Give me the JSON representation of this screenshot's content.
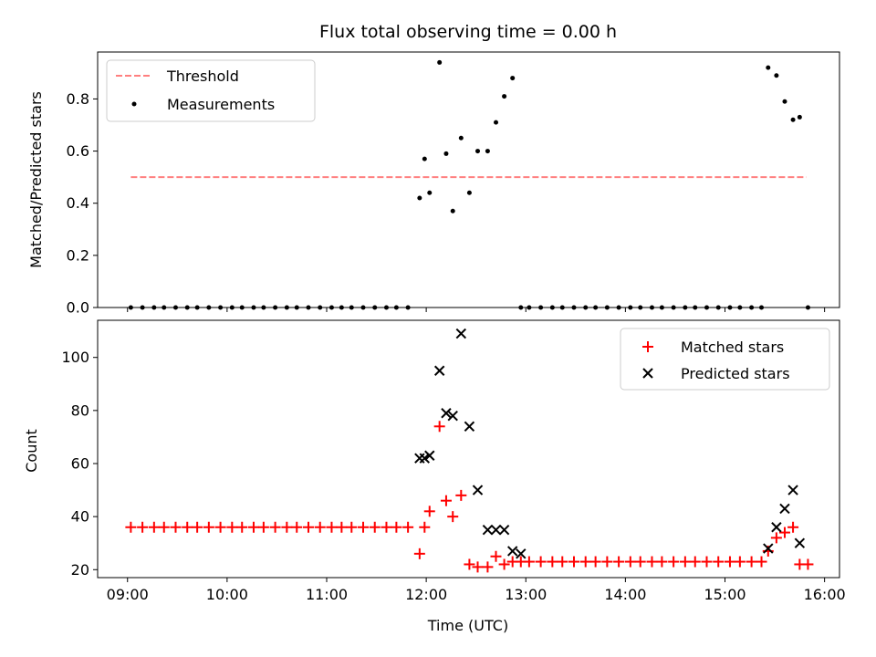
{
  "chart_data": [
    {
      "type": "scatter",
      "title": "Flux total observing time = 0.00 h",
      "ylabel": "Matched/Predicted stars",
      "xlabel": "",
      "ylim": [
        0,
        0.98
      ],
      "yticks": [
        "0.0",
        "0.2",
        "0.4",
        "0.6",
        "0.8"
      ],
      "ytick_values": [
        0,
        0.2,
        0.4,
        0.6,
        0.8
      ],
      "legend_position": "upper-left",
      "colors": {
        "threshold": "#ff7f7f",
        "measurements": "#000000"
      },
      "series": [
        {
          "name": "Threshold",
          "kind": "dashed-line",
          "x": [
            "09:02",
            "15:49"
          ],
          "y": [
            0.5,
            0.5
          ]
        },
        {
          "name": "Measurements",
          "kind": "points",
          "x": [
            "09:02",
            "09:09",
            "09:16",
            "09:22",
            "09:29",
            "09:36",
            "09:42",
            "09:49",
            "09:56",
            "10:03",
            "10:09",
            "10:16",
            "10:22",
            "10:29",
            "10:36",
            "10:42",
            "10:49",
            "10:56",
            "11:03",
            "11:09",
            "11:15",
            "11:22",
            "11:29",
            "11:36",
            "11:42",
            "11:49",
            "11:56",
            "11:59",
            "12:02",
            "12:08",
            "12:12",
            "12:16",
            "12:21",
            "12:26",
            "12:31",
            "12:37",
            "12:42",
            "12:47",
            "12:52",
            "12:57",
            "13:02",
            "13:09",
            "13:16",
            "13:22",
            "13:29",
            "13:36",
            "13:42",
            "13:49",
            "13:56",
            "14:03",
            "14:09",
            "14:16",
            "14:22",
            "14:29",
            "14:36",
            "14:42",
            "14:49",
            "14:56",
            "15:03",
            "15:09",
            "15:16",
            "15:22",
            "15:26",
            "15:31",
            "15:36",
            "15:41",
            "15:45",
            "15:50"
          ],
          "y": [
            0,
            0,
            0,
            0,
            0,
            0,
            0,
            0,
            0,
            0,
            0,
            0,
            0,
            0,
            0,
            0,
            0,
            0,
            0,
            0,
            0,
            0,
            0,
            0,
            0,
            0,
            0.42,
            0.57,
            0.44,
            0.94,
            0.59,
            0.37,
            0.65,
            0.44,
            0.6,
            0.6,
            0.71,
            0.81,
            0.88,
            0,
            0,
            0,
            0,
            0,
            0,
            0,
            0,
            0,
            0,
            0,
            0,
            0,
            0,
            0,
            0,
            0,
            0,
            0,
            0,
            0,
            0,
            0,
            0.92,
            0.89,
            0.79,
            0.72,
            0.73,
            0
          ]
        }
      ]
    },
    {
      "type": "scatter",
      "title": "",
      "xlabel": "Time (UTC)",
      "ylabel": "Count",
      "ylim": [
        17,
        114
      ],
      "yticks": [
        "20",
        "40",
        "60",
        "80",
        "100"
      ],
      "ytick_values": [
        20,
        40,
        60,
        80,
        100
      ],
      "xlim": [
        "08:42",
        "16:09"
      ],
      "xticks": [
        "09:00",
        "10:00",
        "11:00",
        "12:00",
        "13:00",
        "14:00",
        "15:00",
        "16:00"
      ],
      "legend_position": "upper-right",
      "colors": {
        "matched": "#ff0000",
        "predicted": "#000000"
      },
      "series": [
        {
          "name": "Matched stars",
          "marker": "plus",
          "x": [
            "09:02",
            "09:09",
            "09:16",
            "09:22",
            "09:29",
            "09:36",
            "09:42",
            "09:49",
            "09:56",
            "10:03",
            "10:09",
            "10:16",
            "10:22",
            "10:29",
            "10:36",
            "10:42",
            "10:49",
            "10:56",
            "11:03",
            "11:09",
            "11:15",
            "11:22",
            "11:29",
            "11:36",
            "11:42",
            "11:49",
            "11:56",
            "11:59",
            "12:02",
            "12:08",
            "12:12",
            "12:16",
            "12:21",
            "12:26",
            "12:31",
            "12:37",
            "12:42",
            "12:47",
            "12:52",
            "12:57",
            "13:02",
            "13:09",
            "13:16",
            "13:22",
            "13:29",
            "13:36",
            "13:42",
            "13:49",
            "13:56",
            "14:03",
            "14:09",
            "14:16",
            "14:22",
            "14:29",
            "14:36",
            "14:42",
            "14:49",
            "14:56",
            "15:03",
            "15:09",
            "15:16",
            "15:22",
            "15:26",
            "15:31",
            "15:36",
            "15:41",
            "15:45",
            "15:50"
          ],
          "y": [
            36,
            36,
            36,
            36,
            36,
            36,
            36,
            36,
            36,
            36,
            36,
            36,
            36,
            36,
            36,
            36,
            36,
            36,
            36,
            36,
            36,
            36,
            36,
            36,
            36,
            36,
            26,
            36,
            42,
            74,
            46,
            40,
            48,
            22,
            21,
            21,
            25,
            22,
            23,
            23,
            23,
            23,
            23,
            23,
            23,
            23,
            23,
            23,
            23,
            23,
            23,
            23,
            23,
            23,
            23,
            23,
            23,
            23,
            23,
            23,
            23,
            23,
            27,
            32,
            34,
            36,
            22,
            22
          ]
        },
        {
          "name": "Predicted stars",
          "marker": "x",
          "x": [
            "11:56",
            "11:59",
            "12:02",
            "12:08",
            "12:12",
            "12:16",
            "12:21",
            "12:26",
            "12:31",
            "12:37",
            "12:42",
            "12:47",
            "12:52",
            "12:57",
            "15:26",
            "15:31",
            "15:36",
            "15:41",
            "15:45"
          ],
          "y": [
            62,
            62,
            63,
            95,
            79,
            78,
            109,
            74,
            50,
            35,
            35,
            35,
            27,
            26,
            28,
            36,
            43,
            50,
            30
          ]
        }
      ]
    }
  ]
}
